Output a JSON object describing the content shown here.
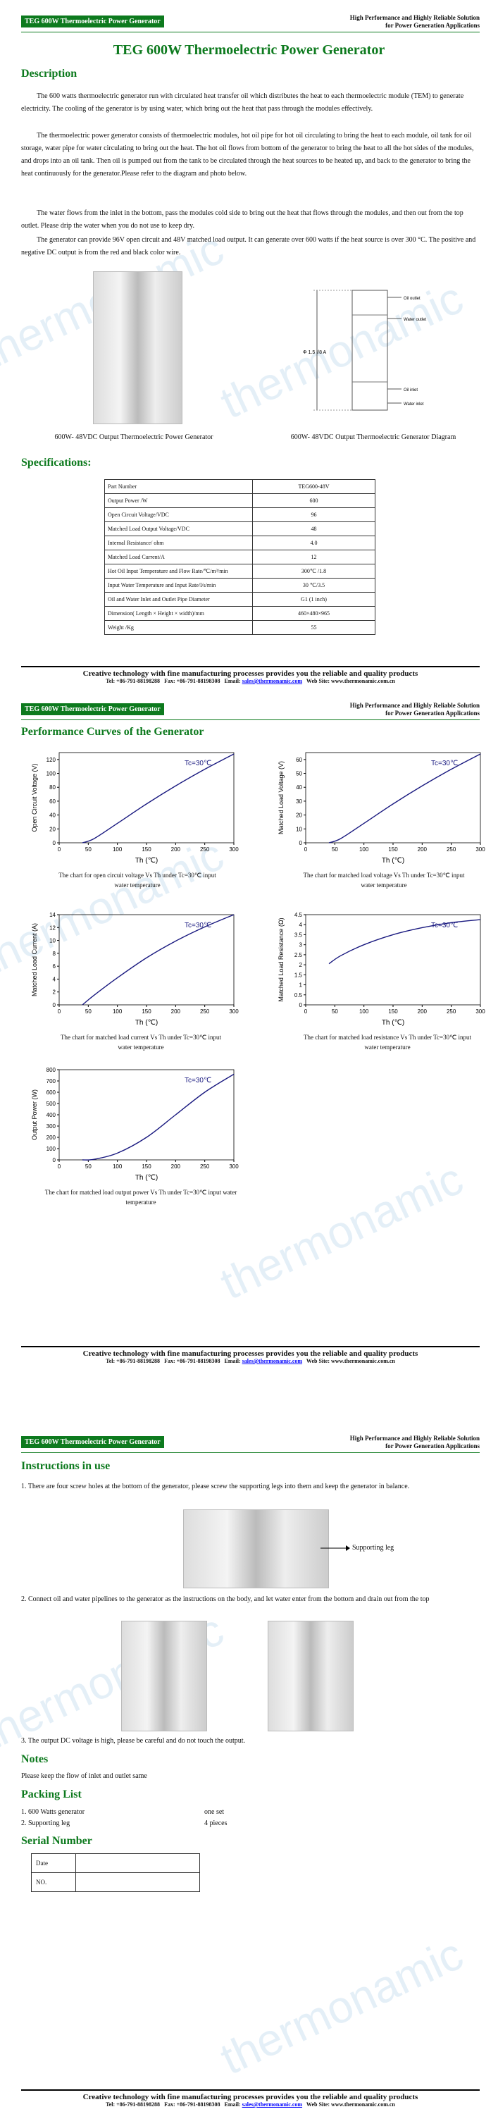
{
  "header": {
    "tag": "TEG 600W Thermoelectric Power Generator",
    "right_line1": "High Performance and Highly Reliable Solution",
    "right_line2": "for Power Generation Applications"
  },
  "watermark": "thermonamic",
  "page1": {
    "title": "TEG 600W Thermoelectric Power Generator",
    "description_heading": "Description",
    "paragraphs": [
      "The 600 watts thermoelectric generator run with circulated heat transfer oil which distributes the heat to each thermoelectric module (TEM) to generate electricity. The cooling of the generator is by using water, which bring out the heat that pass through the modules effectively.",
      "The thermoelectric power generator consists of thermoelectric modules, hot oil pipe for hot oil circulating to bring the heat to each module, oil tank for oil storage, water pipe for water circulating to bring out the heat. The hot oil flows from bottom of the generator to bring the heat to all the hot sides of the modules, and drops into an oil tank. Then oil is pumped out from the tank to be circulated through the heat sources to be heated up, and back to the generator to bring the heat continuously for the generator.Please refer to the diagram and photo below.",
      "The water flows from the inlet in the bottom, pass the modules cold side to bring out the heat that flows through the modules, and then out from the top outlet. Please drip the water when you do not use to keep dry.",
      "The generator can provide 96V open circuit and 48V matched load output. It can generate over 600 watts if the heat source is over 300 °C. The positive and negative DC output is from the red and black color wire."
    ],
    "photo_caption": "600W- 48VDC Output Thermoelectric Power Generator",
    "diagram_caption": "600W- 48VDC Output Thermoelectric Generator Diagram",
    "diagram_labels": [
      "Φ 1.5 I/8 A",
      "Oil outlet",
      "Water outlet",
      "Oil inlet",
      "Water inlet"
    ],
    "spec_heading": "Specifications:",
    "spec_rows": [
      [
        "Part Number",
        "TEG600-48V"
      ],
      [
        "Output Power /W",
        "600"
      ],
      [
        "Open Circuit Voltage/VDC",
        "96"
      ],
      [
        "Matched Load Output Voltage/VDC",
        "48"
      ],
      [
        "Internal Resistance/ ohm",
        "4.0"
      ],
      [
        "Matched Load Current/A",
        "12"
      ],
      [
        "Hot Oil Input Temperature and Flow Rate/℃/m³/min",
        "300℃ /1.8"
      ],
      [
        "Input Water Temperature and Input Rate/l/s/min",
        "30 ℃/3.5"
      ],
      [
        "Oil and Water Inlet and Outlet Pipe Diameter",
        "G1 (1 inch)"
      ],
      [
        "Dimension( Length × Height × width)/mm",
        "460×480×965"
      ],
      [
        "Weight /Kg",
        "55"
      ]
    ]
  },
  "footer": {
    "line1": "Creative technology with fine manufacturing processes provides you the reliable and quality products",
    "tel": "Tel: +86-791-88198288",
    "fax": "Fax: +86-791-88198308",
    "email_label": "Email:",
    "email": "sales@thermonamic.com",
    "web": "Web Site: www.thermonamic.com.cn"
  },
  "page2": {
    "heading": "Performance Curves of the Generator",
    "captions": [
      "The chart for open circuit voltage Vs Th under Tc=30℃ input water temperature",
      "The chart for matched load voltage Vs Th under Tc=30℃ input water temperature",
      "The chart for matched load current Vs Th under Tc=30℃ input water temperature",
      "The chart for matched load resistance Vs Th under Tc=30℃ input water temperature",
      "The chart for matched load output power Vs Th under Tc=30℃ input water temperature"
    ]
  },
  "chart_data": [
    {
      "type": "line",
      "title": "",
      "ylabel": "Open Circuit Voltage (V)",
      "xlabel": "Th (℃)",
      "annotation": "Tc=30℃",
      "xlim": [
        0,
        300
      ],
      "ylim": [
        0,
        130
      ],
      "xticks": [
        0,
        50,
        100,
        150,
        200,
        250,
        300
      ],
      "yticks": [
        0,
        20,
        40,
        60,
        80,
        100,
        120
      ],
      "x": [
        40,
        60,
        100,
        150,
        200,
        250,
        300
      ],
      "y": [
        0,
        6,
        28,
        56,
        82,
        106,
        128
      ]
    },
    {
      "type": "line",
      "title": "",
      "ylabel": "Matched Load Voltage (V)",
      "xlabel": "Th (℃)",
      "annotation": "Tc=30℃",
      "xlim": [
        0,
        300
      ],
      "ylim": [
        0,
        65
      ],
      "xticks": [
        0,
        50,
        100,
        150,
        200,
        250,
        300
      ],
      "yticks": [
        0,
        10,
        20,
        30,
        40,
        50,
        60
      ],
      "x": [
        40,
        60,
        100,
        150,
        200,
        250,
        300
      ],
      "y": [
        0,
        3,
        14,
        28,
        41,
        53,
        64
      ]
    },
    {
      "type": "line",
      "title": "",
      "ylabel": "Matched Load Current (A)",
      "xlabel": "Th (℃)",
      "annotation": "Tc=30℃",
      "xlim": [
        0,
        300
      ],
      "ylim": [
        0,
        14
      ],
      "xticks": [
        0,
        50,
        100,
        150,
        200,
        250,
        300
      ],
      "yticks": [
        0,
        2,
        4,
        6,
        8,
        10,
        12,
        14
      ],
      "x": [
        40,
        60,
        100,
        150,
        200,
        250,
        300
      ],
      "y": [
        0,
        1.5,
        4.2,
        7.3,
        9.9,
        12.1,
        14
      ]
    },
    {
      "type": "line",
      "title": "",
      "ylabel": "Matched Load Resistance (Ω)",
      "xlabel": "Th (℃)",
      "annotation": "Tc=30℃",
      "xlim": [
        0,
        300
      ],
      "ylim": [
        0,
        4.5
      ],
      "xticks": [
        0,
        50,
        100,
        150,
        200,
        250,
        300
      ],
      "yticks": [
        0,
        0.5,
        1,
        1.5,
        2,
        2.5,
        3,
        3.5,
        4,
        4.5
      ],
      "x": [
        40,
        60,
        100,
        150,
        200,
        250,
        300
      ],
      "y": [
        2.05,
        2.45,
        3.0,
        3.5,
        3.85,
        4.1,
        4.25
      ]
    },
    {
      "type": "line",
      "title": "",
      "ylabel": "Output Power (W)",
      "xlabel": "Th (℃)",
      "annotation": "Tc=30℃",
      "xlim": [
        0,
        300
      ],
      "ylim": [
        0,
        800
      ],
      "xticks": [
        0,
        50,
        100,
        150,
        200,
        250,
        300
      ],
      "yticks": [
        0,
        100,
        200,
        300,
        400,
        500,
        600,
        700,
        800
      ],
      "x": [
        40,
        60,
        100,
        150,
        200,
        250,
        300
      ],
      "y": [
        0,
        5,
        60,
        200,
        400,
        600,
        760
      ]
    }
  ],
  "page3": {
    "instructions_heading": "Instructions in use",
    "steps": [
      "1.   There are four screw holes at the bottom of the generator, please screw the supporting legs into them and keep the generator in balance.",
      "2.   Connect oil and water pipelines to the generator as the instructions on the body, and let water enter from the bottom and drain out from the top",
      "3.   The output DC voltage is high, please be careful and do not touch the output."
    ],
    "leg_label": "Supporting leg",
    "notes_heading": "Notes",
    "notes_text": "Please keep the flow of inlet and outlet same",
    "packing_heading": "Packing List",
    "packing": [
      {
        "item": "1. 600 Watts generator",
        "qty": "one set"
      },
      {
        "item": "2. Supporting leg",
        "qty": "4 pieces"
      }
    ],
    "serial_heading": "Serial Number",
    "serial_rows": [
      "Date",
      "NO."
    ]
  }
}
